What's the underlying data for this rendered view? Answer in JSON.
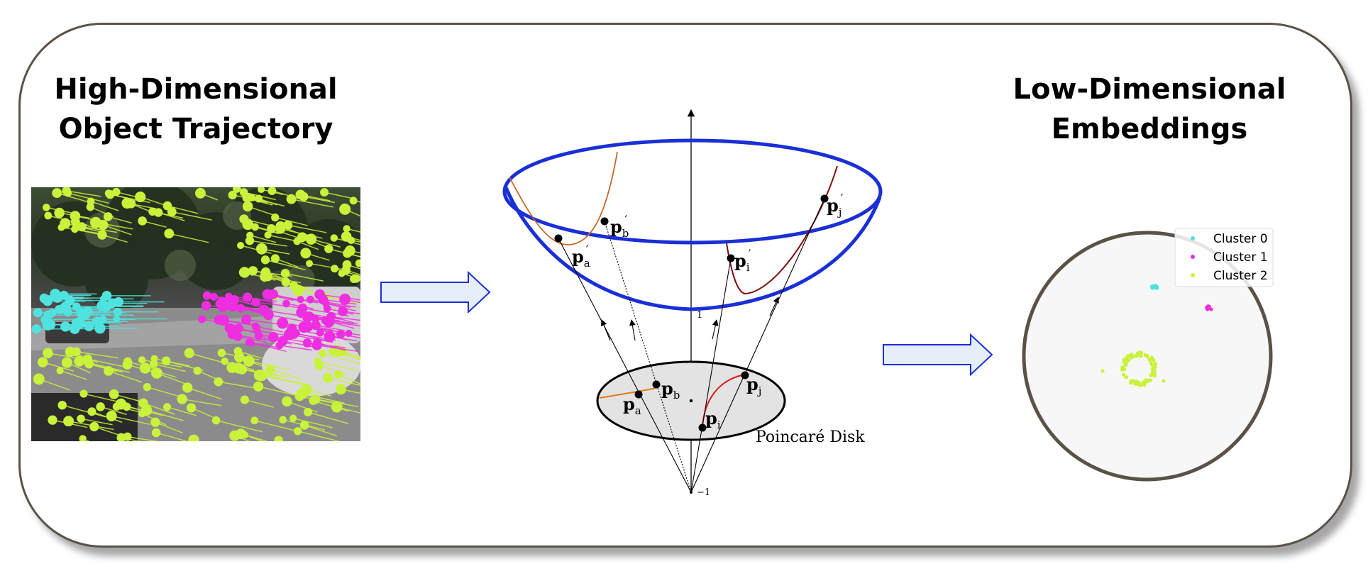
{
  "left_panel": {
    "title_line1": "High-Dimensional",
    "title_line2": "Object Trajectory",
    "track_colors": {
      "cyan": "#4fe3e0",
      "magenta": "#ee2ee0",
      "yellow_green": "#c9f23a"
    }
  },
  "middle_panel": {
    "axis_top_label": "1",
    "axis_bottom_label": "−1",
    "disk_label": "Poincaré Disk",
    "points_hyperboloid": {
      "a": "a",
      "b": "b",
      "i": "i",
      "j": "j"
    },
    "points_disk": {
      "a": "a",
      "b": "b",
      "i": "i",
      "j": "j"
    },
    "point_letter": "p",
    "prime": "′",
    "colors": {
      "hyperboloid_rim": "#1a2fd6",
      "geodesic_orange": "#e07a1a",
      "geodesic_red": "#d81b1b",
      "disk_fill": "#e3e3e3"
    }
  },
  "right_panel": {
    "title_line1": "Low-Dimensional",
    "title_line2": "Embeddings",
    "legend": [
      {
        "label": "Cluster 0",
        "color": "#4fe3e0"
      },
      {
        "label": "Cluster 1",
        "color": "#ee2ee0"
      },
      {
        "label": "Cluster 2",
        "color": "#c9f23a"
      }
    ]
  },
  "colors": {
    "arrow_fill": "#e6eefa",
    "arrow_stroke": "#1a2fd6",
    "card_border": "#5a5246"
  }
}
